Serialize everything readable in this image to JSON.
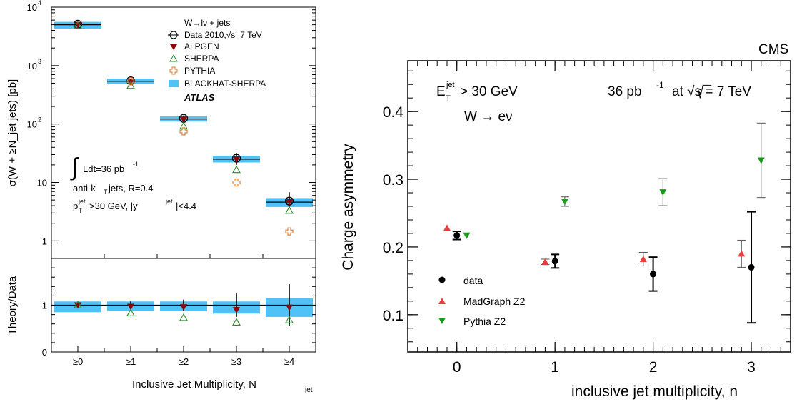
{
  "chart_data": [
    {
      "type": "scatter",
      "panel": "main",
      "categories": [
        "≥0",
        "≥1",
        "≥2",
        "≥3",
        "≥4"
      ],
      "ylabel": "σ(W + ≥N_jet jets) [pb]",
      "yscale": "log",
      "ylim": [
        0.5,
        10000
      ],
      "yticks": [
        {
          "value": 1,
          "base": "1",
          "exp": ""
        },
        {
          "value": 10,
          "base": "10",
          "exp": ""
        },
        {
          "value": 100,
          "base": "10",
          "exp": "2"
        },
        {
          "value": 1000,
          "base": "10",
          "exp": "3"
        },
        {
          "value": 10000,
          "base": "10",
          "exp": "4"
        }
      ],
      "legend_title": "W→lν + jets",
      "legend": [
        {
          "name": "Data 2010,√s=7 TeV",
          "symbol": "circle-open"
        },
        {
          "name": "ALPGEN",
          "symbol": "triangle-down"
        },
        {
          "name": "SHERPA",
          "symbol": "triangle-up-open"
        },
        {
          "name": "PYTHIA",
          "symbol": "cross-open"
        },
        {
          "name": "BLACKHAT-SHERPA",
          "symbol": "band"
        }
      ],
      "experiment": "ATLAS",
      "annotations": [
        "Ldt=36 pb",
        "anti-k",
        " jets, R=0.4",
        "p",
        ">30 GeV, |y",
        "|<4.4"
      ],
      "series": [
        {
          "name": "Data 2010,√s=7 TeV",
          "values": [
            5100,
            550,
            125,
            26,
            4.8
          ],
          "err_low": [
            300,
            40,
            15,
            6,
            1.2
          ],
          "err_high": [
            300,
            40,
            15,
            6,
            2.0
          ]
        },
        {
          "name": "ALPGEN",
          "values": [
            5000,
            530,
            120,
            25,
            4.6
          ]
        },
        {
          "name": "SHERPA",
          "values": [
            5000,
            470,
            95,
            17,
            3.4
          ]
        },
        {
          "name": "PYTHIA",
          "values": [
            5000,
            540,
            75,
            10,
            1.45
          ]
        },
        {
          "name": "BLACKHAT-SHERPA",
          "values": [
            5000,
            540,
            122,
            25,
            4.6
          ],
          "band_low": [
            4300,
            490,
            110,
            22,
            3.8
          ],
          "band_high": [
            5600,
            600,
            135,
            28.5,
            5.4
          ]
        }
      ],
      "colors": {
        "alpgen": "#8b0000",
        "sherpa": "#2e8b2e",
        "pythia": "#e07a28",
        "band": "#4fc3f7"
      }
    },
    {
      "type": "scatter",
      "panel": "ratio",
      "categories": [
        "≥0",
        "≥1",
        "≥2",
        "≥3",
        "≥4"
      ],
      "xlabel": "Inclusive Jet Multiplicity, N",
      "xlabel_sub": "jet",
      "ylabel": "Theory/Data",
      "ylim": [
        0,
        2
      ],
      "yticks": [
        "0",
        "1"
      ],
      "series": [
        {
          "name": "Data 2010,√s=7 TeV",
          "values": [
            1,
            1,
            1,
            1,
            1
          ],
          "err": [
            0.06,
            0.08,
            0.12,
            0.25,
            0.45
          ]
        },
        {
          "name": "ALPGEN",
          "values": [
            1.0,
            0.97,
            0.96,
            0.9,
            0.95
          ]
        },
        {
          "name": "SHERPA",
          "values": [
            1.02,
            0.85,
            0.75,
            0.65,
            0.7
          ]
        },
        {
          "name": "BLACKHAT-SHERPA",
          "values": [
            0.98,
            0.98,
            0.97,
            0.95,
            0.95
          ],
          "band_low": [
            0.85,
            0.88,
            0.87,
            0.82,
            0.75
          ],
          "band_high": [
            1.08,
            1.08,
            1.08,
            1.08,
            1.15
          ]
        }
      ]
    },
    {
      "type": "scatter",
      "panel": "cms",
      "xlabel": "inclusive jet multiplicity, n",
      "ylabel": "Charge asymmetry",
      "xlim": [
        -0.5,
        3.4
      ],
      "ylim": [
        0.045,
        0.475
      ],
      "xticks": [
        "0",
        "1",
        "2",
        "3"
      ],
      "yticks": [
        "0.1",
        "0.2",
        "0.3",
        "0.4"
      ],
      "experiment": "CMS",
      "lumi_text": "36 pb",
      "lumi_exp": "-1",
      "energy_text": "at √s = 7 TeV",
      "cut_text": "> 30 GeV",
      "channel_text": "W → eν",
      "legend": [
        {
          "name": "data",
          "color": "#000000",
          "symbol": "circle"
        },
        {
          "name": "MadGraph Z2",
          "color": "#ee3b3b",
          "symbol": "triangle-up"
        },
        {
          "name": "Pythia Z2",
          "color": "#1a9a1a",
          "symbol": "triangle-down"
        }
      ],
      "series": [
        {
          "name": "data",
          "x": [
            0,
            1,
            2,
            3
          ],
          "y": [
            0.217,
            0.179,
            0.16,
            0.17
          ],
          "err": [
            0.006,
            0.01,
            0.025,
            0.082
          ]
        },
        {
          "name": "MadGraph Z2",
          "x": [
            -0.1,
            0.9,
            1.9,
            2.9
          ],
          "y": [
            0.228,
            0.178,
            0.182,
            0.19
          ],
          "err": [
            0,
            0.004,
            0.01,
            0.02
          ]
        },
        {
          "name": "Pythia Z2",
          "x": [
            0.1,
            1.1,
            2.1,
            3.1
          ],
          "y": [
            0.217,
            0.267,
            0.281,
            0.328
          ],
          "err": [
            0,
            0.007,
            0.02,
            0.055
          ]
        }
      ]
    }
  ]
}
